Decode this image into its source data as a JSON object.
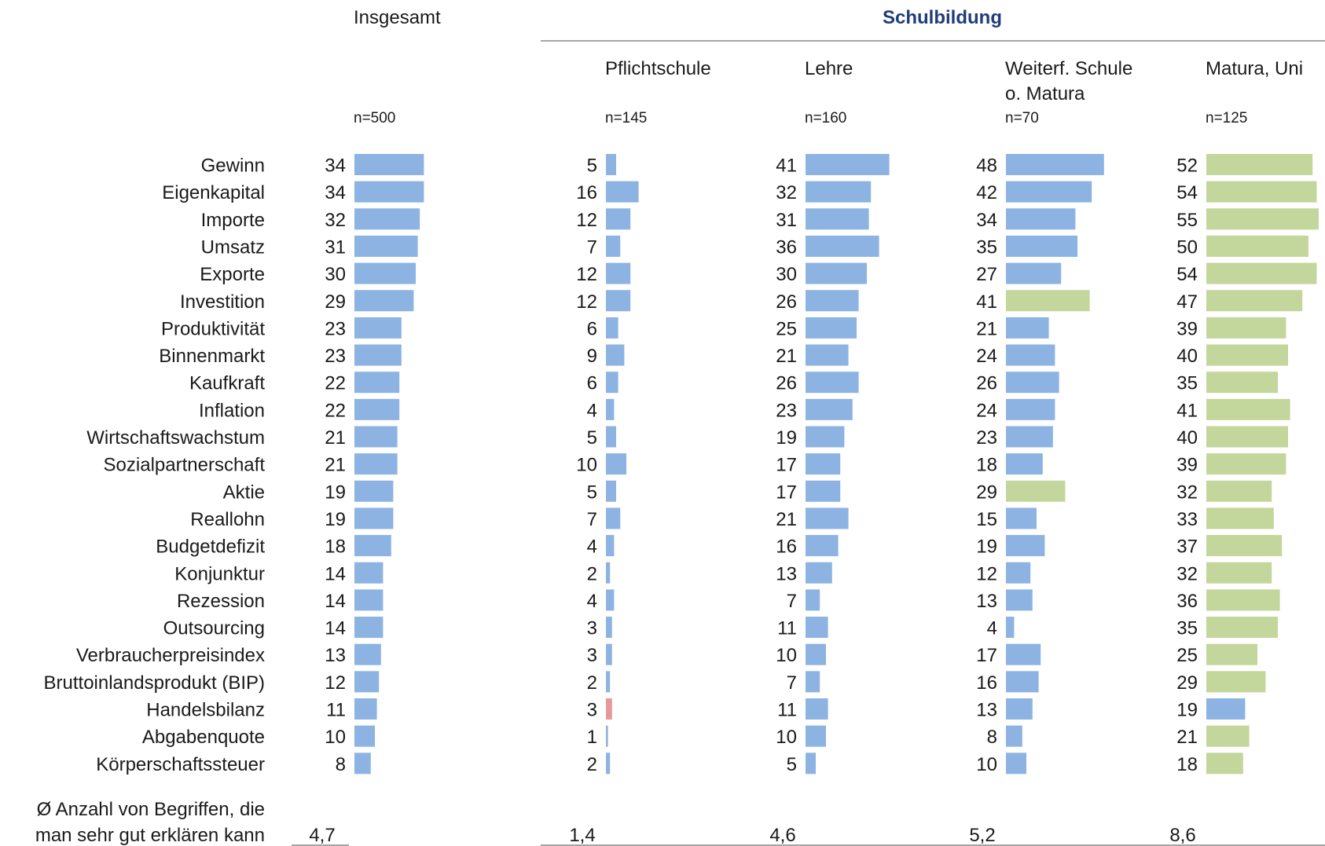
{
  "chart_data": {
    "type": "bar",
    "orientation": "horizontal",
    "group_header": "Schulbildung",
    "colors": {
      "default": "#8db3e2",
      "above": "#c3d69b",
      "below": "#e6999a"
    },
    "categories": [
      "Gewinn",
      "Eigenkapital",
      "Importe",
      "Umsatz",
      "Exporte",
      "Investition",
      "Produktivität",
      "Binnenmarkt",
      "Kaufkraft",
      "Inflation",
      "Wirtschaftswachstum",
      "Sozialpartnerschaft",
      "Aktie",
      "Reallohn",
      "Budgetdefizit",
      "Konjunktur",
      "Rezession",
      "Outsourcing",
      "Verbraucherpreisindex",
      "Bruttoinlandsprodukt (BIP)",
      "Handelsbilanz",
      "Abgabenquote",
      "Körperschaftssteuer"
    ],
    "series": [
      {
        "name": "Insgesamt",
        "n": "n=500",
        "values": [
          34,
          34,
          32,
          31,
          30,
          29,
          23,
          23,
          22,
          22,
          21,
          21,
          19,
          19,
          18,
          14,
          14,
          14,
          13,
          12,
          11,
          10,
          8
        ],
        "highlight": [
          "default",
          "default",
          "default",
          "default",
          "default",
          "default",
          "default",
          "default",
          "default",
          "default",
          "default",
          "default",
          "default",
          "default",
          "default",
          "default",
          "default",
          "default",
          "default",
          "default",
          "default",
          "default",
          "default"
        ],
        "avg": "4,7"
      },
      {
        "name": "Pflichtschule",
        "n": "n=145",
        "values": [
          5,
          16,
          12,
          7,
          12,
          12,
          6,
          9,
          6,
          4,
          5,
          10,
          5,
          7,
          4,
          2,
          4,
          3,
          3,
          2,
          3,
          1,
          2
        ],
        "highlight": [
          "default",
          "default",
          "default",
          "default",
          "default",
          "default",
          "default",
          "default",
          "default",
          "default",
          "default",
          "default",
          "default",
          "default",
          "default",
          "default",
          "default",
          "default",
          "default",
          "default",
          "below",
          "default",
          "default"
        ],
        "avg": "1,4"
      },
      {
        "name": "Lehre",
        "n": "n=160",
        "values": [
          41,
          32,
          31,
          36,
          30,
          26,
          25,
          21,
          26,
          23,
          19,
          17,
          17,
          21,
          16,
          13,
          7,
          11,
          10,
          7,
          11,
          10,
          5
        ],
        "highlight": [
          "default",
          "default",
          "default",
          "default",
          "default",
          "default",
          "default",
          "default",
          "default",
          "default",
          "default",
          "default",
          "default",
          "default",
          "default",
          "default",
          "default",
          "default",
          "default",
          "default",
          "default",
          "default",
          "default"
        ],
        "avg": "4,6"
      },
      {
        "name": "Weiterf. Schule o. Matura",
        "n": "n=70",
        "values": [
          48,
          42,
          34,
          35,
          27,
          41,
          21,
          24,
          26,
          24,
          23,
          18,
          29,
          15,
          19,
          12,
          13,
          4,
          17,
          16,
          13,
          8,
          10
        ],
        "highlight": [
          "default",
          "default",
          "default",
          "default",
          "default",
          "above",
          "default",
          "default",
          "default",
          "default",
          "default",
          "default",
          "above",
          "default",
          "default",
          "default",
          "default",
          "default",
          "default",
          "default",
          "default",
          "default",
          "default"
        ],
        "avg": "5,2"
      },
      {
        "name": "Matura, Uni",
        "n": "n=125",
        "values": [
          52,
          54,
          55,
          50,
          54,
          47,
          39,
          40,
          35,
          41,
          40,
          39,
          32,
          33,
          37,
          32,
          36,
          35,
          25,
          29,
          19,
          21,
          18
        ],
        "highlight": [
          "above",
          "above",
          "above",
          "above",
          "above",
          "above",
          "above",
          "above",
          "above",
          "above",
          "above",
          "above",
          "above",
          "above",
          "above",
          "above",
          "above",
          "above",
          "above",
          "above",
          "default",
          "above",
          "above"
        ],
        "avg": "8,6"
      }
    ],
    "avg_label": "Ø Anzahl von Begriffen, die man sehr gut erklären kann"
  }
}
